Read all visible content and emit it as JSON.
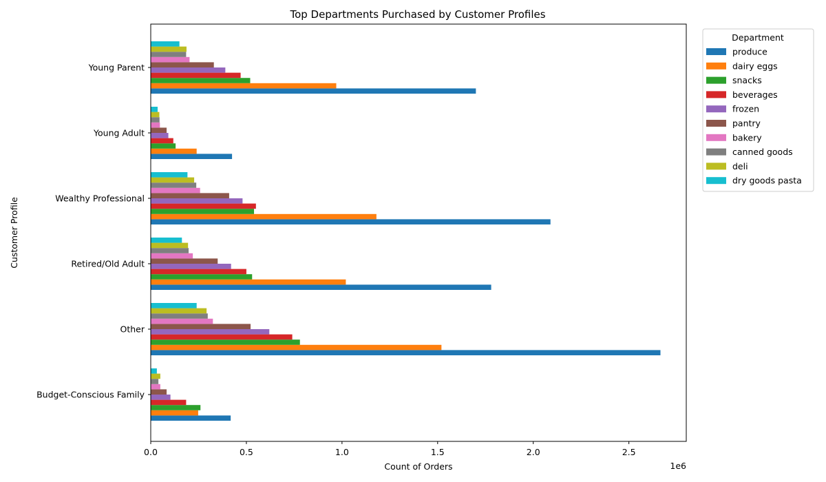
{
  "chart_data": {
    "type": "bar",
    "orientation": "horizontal",
    "title": "Top Departments Purchased by Customer Profiles",
    "xlabel": "Count of Orders",
    "ylabel": "Customer Profile",
    "x_offset_label": "1e6",
    "x_scale": 1000000,
    "xlim": [
      0,
      2800000
    ],
    "x_ticks": [
      0,
      500000,
      1000000,
      1500000,
      2000000,
      2500000
    ],
    "x_tick_labels": [
      "0.0",
      "0.5",
      "1.0",
      "1.5",
      "2.0",
      "2.5"
    ],
    "grid": false,
    "legend_title": "Department",
    "legend_position": "outside-top-right",
    "categories": [
      "Budget-Conscious Family",
      "Other",
      "Retired/Old Adult",
      "Wealthy Professional",
      "Young Adult",
      "Young Parent"
    ],
    "series": [
      {
        "name": "produce",
        "color": "#1f77b4",
        "values": [
          418000,
          2665000,
          1780000,
          2090000,
          425000,
          1700000
        ]
      },
      {
        "name": "dairy eggs",
        "color": "#ff7f0e",
        "values": [
          248000,
          1520000,
          1020000,
          1180000,
          240000,
          970000
        ]
      },
      {
        "name": "snacks",
        "color": "#2ca02c",
        "values": [
          260000,
          780000,
          530000,
          540000,
          130000,
          520000
        ]
      },
      {
        "name": "beverages",
        "color": "#d62728",
        "values": [
          185000,
          740000,
          500000,
          550000,
          118000,
          470000
        ]
      },
      {
        "name": "frozen",
        "color": "#9467bd",
        "values": [
          103000,
          620000,
          420000,
          480000,
          92000,
          390000
        ]
      },
      {
        "name": "pantry",
        "color": "#8c564b",
        "values": [
          83000,
          522000,
          350000,
          410000,
          83000,
          330000
        ]
      },
      {
        "name": "bakery",
        "color": "#e377c2",
        "values": [
          50000,
          325000,
          220000,
          258000,
          48000,
          203000
        ]
      },
      {
        "name": "canned goods",
        "color": "#7f7f7f",
        "values": [
          40000,
          298000,
          198000,
          238000,
          46000,
          185000
        ]
      },
      {
        "name": "deli",
        "color": "#bcbd22",
        "values": [
          50000,
          292000,
          195000,
          227000,
          45000,
          187000
        ]
      },
      {
        "name": "dry goods pasta",
        "color": "#17becf",
        "values": [
          32000,
          240000,
          163000,
          192000,
          36000,
          150000
        ]
      }
    ]
  }
}
